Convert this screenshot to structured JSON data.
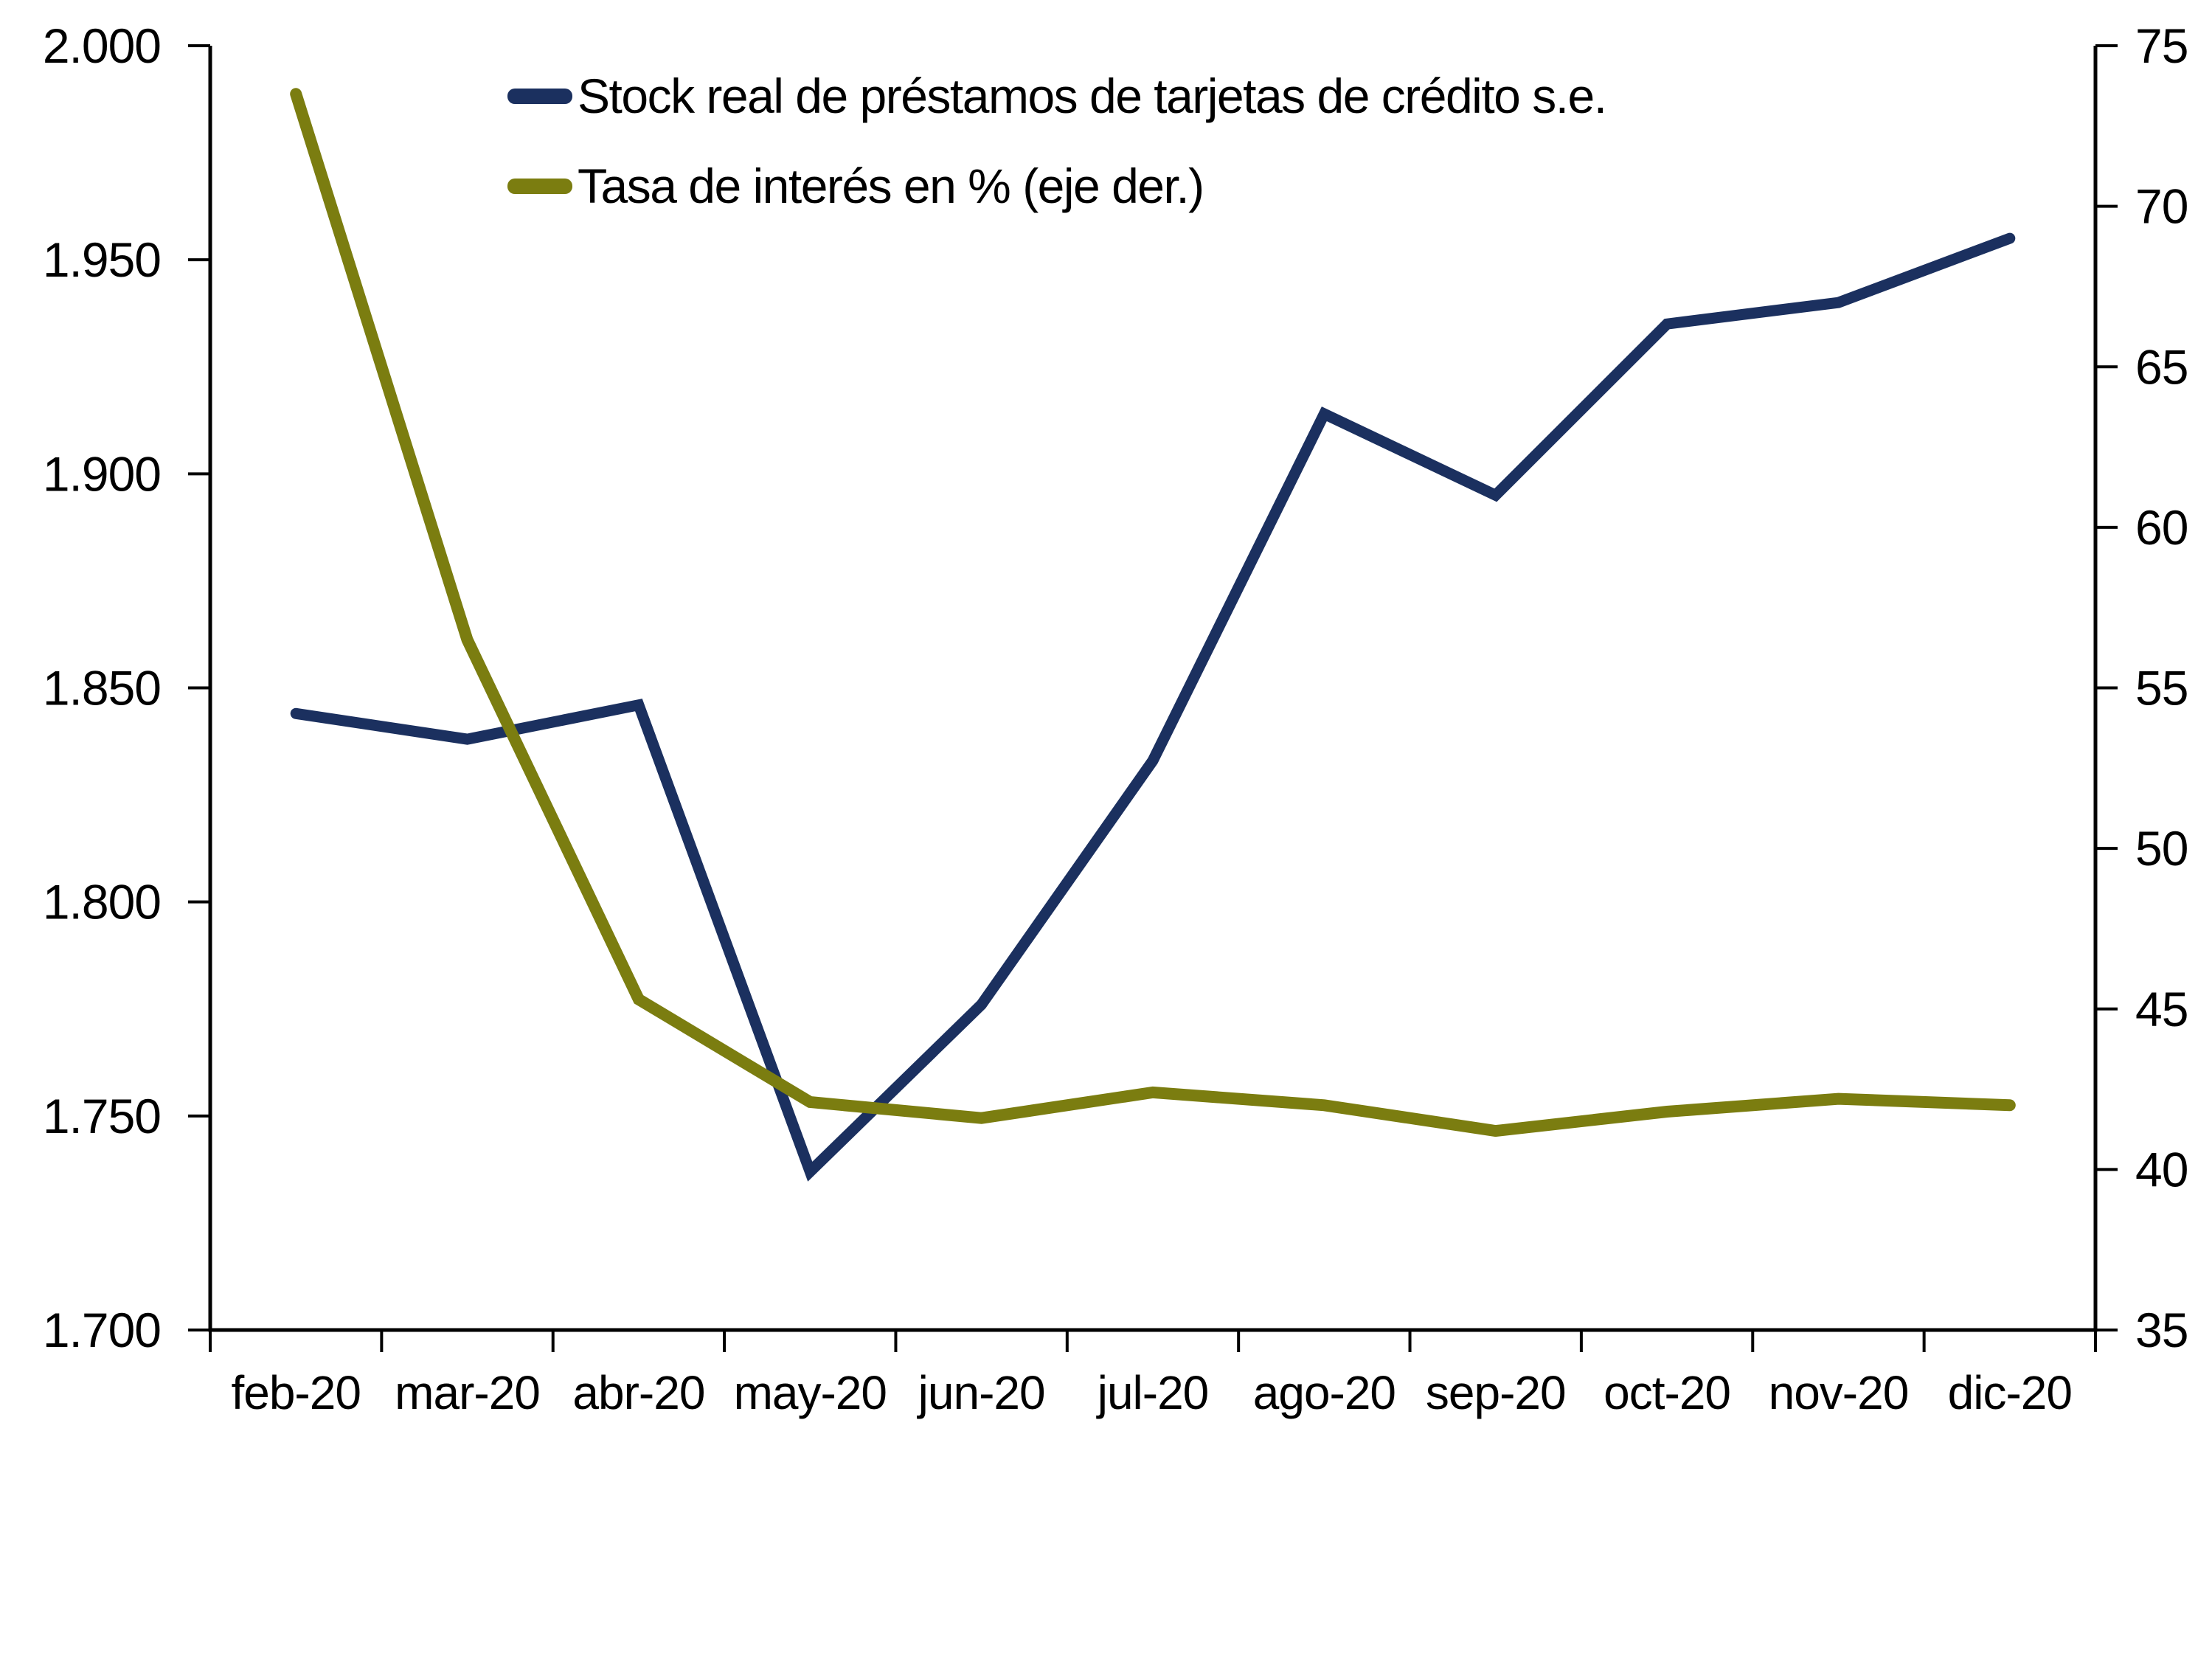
{
  "page": {
    "background_color": "#ffffff",
    "axis_color": "#000000"
  },
  "chart_data": {
    "type": "line",
    "categories": [
      "feb-20",
      "mar-20",
      "abr-20",
      "may-20",
      "jun-20",
      "jul-20",
      "ago-20",
      "sep-20",
      "oct-20",
      "nov-20",
      "dic-20"
    ],
    "series": [
      {
        "name": "Stock real de préstamos de tarjetas de crédito s.e.",
        "axis": "left",
        "color": "#1B305F",
        "stroke_width": 15,
        "values": [
          1844,
          1838,
          1846,
          1737,
          1776,
          1833,
          1914,
          1895,
          1935,
          1940,
          1955
        ]
      },
      {
        "name": "Tasa de interés en % (eje der.)",
        "axis": "right",
        "color": "#7B7D10",
        "stroke_width": 16,
        "values": [
          73.5,
          56.5,
          45.3,
          42.1,
          41.6,
          42.4,
          42.0,
          41.2,
          41.8,
          42.2,
          42.0
        ]
      }
    ],
    "left_axis": {
      "min": 1700,
      "max": 2000,
      "tick_step": 50,
      "tick_labels": [
        "2.000",
        "1.950",
        "1.900",
        "1.850",
        "1.800",
        "1.750",
        "1.700"
      ]
    },
    "right_axis": {
      "min": 35,
      "max": 75,
      "tick_step": 5,
      "tick_labels": [
        "75",
        "70",
        "65",
        "60",
        "55",
        "50",
        "45",
        "40",
        "35"
      ]
    },
    "legend_position": "top-left-inside",
    "grid": false,
    "title": "",
    "xlabel": "",
    "ylabel_left": "",
    "ylabel_right": ""
  }
}
